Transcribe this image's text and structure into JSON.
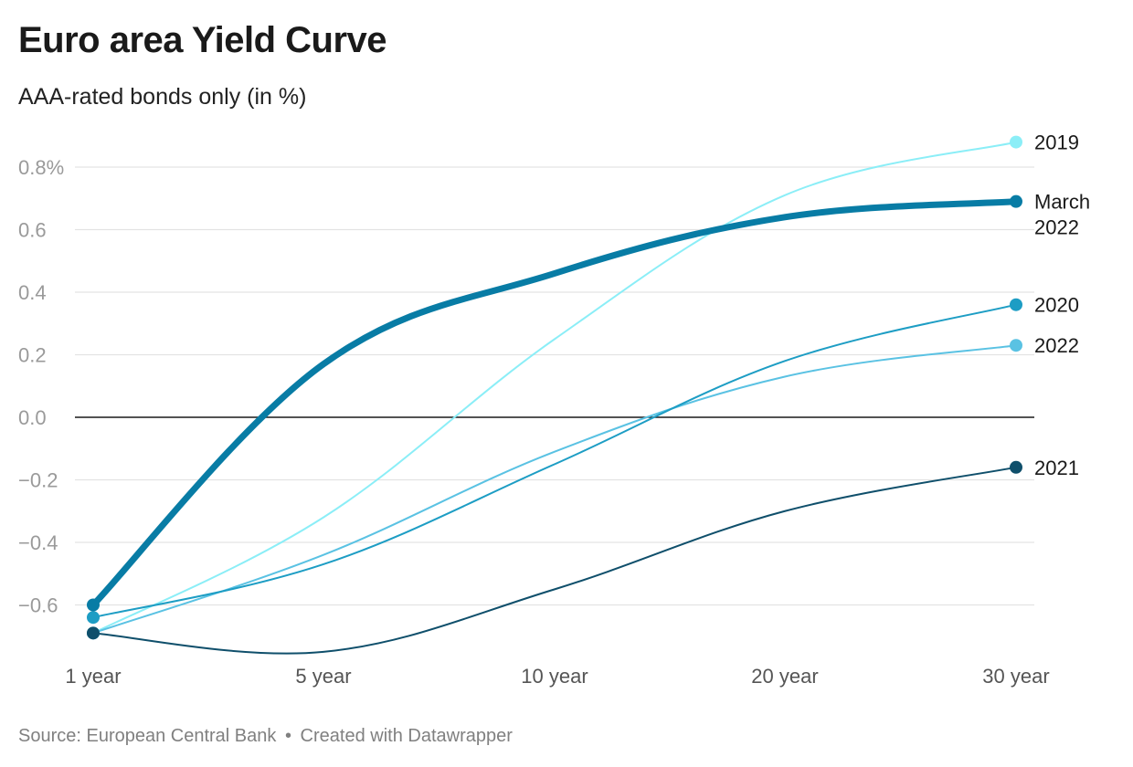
{
  "title": "Euro area Yield Curve",
  "subtitle": "AAA-rated bonds only (in %)",
  "source": {
    "text": "Source: European Central Bank",
    "separator": "•",
    "credit": "Created with Datawrapper"
  },
  "chart_data": {
    "type": "line",
    "title": "Euro area Yield Curve",
    "subtitle": "AAA-rated bonds only (in %)",
    "xlabel": "",
    "ylabel": "",
    "categories": [
      "1 year",
      "5 year",
      "10 year",
      "20 year",
      "30 year"
    ],
    "y_ticks": [
      {
        "value": 0.8,
        "label": "0.8%"
      },
      {
        "value": 0.6,
        "label": "0.6"
      },
      {
        "value": 0.4,
        "label": "0.4"
      },
      {
        "value": 0.2,
        "label": "0.2"
      },
      {
        "value": 0.0,
        "label": "0.0"
      },
      {
        "value": -0.2,
        "label": "−0.2"
      },
      {
        "value": -0.4,
        "label": "−0.4"
      },
      {
        "value": -0.6,
        "label": "−0.6"
      }
    ],
    "ylim": [
      -0.8,
      0.95
    ],
    "grid": true,
    "legend": "direct labels at line ends (right)",
    "series": [
      {
        "name": "2019",
        "label_lines": [
          "2019"
        ],
        "color": "#8beef7",
        "width": 2,
        "values": [
          -0.69,
          -0.32,
          0.25,
          0.71,
          0.88
        ]
      },
      {
        "name": "2022",
        "label_lines": [
          "2022"
        ],
        "color": "#5ac2e3",
        "width": 2,
        "values": [
          -0.69,
          -0.44,
          -0.11,
          0.13,
          0.23
        ]
      },
      {
        "name": "2020",
        "label_lines": [
          "2020"
        ],
        "color": "#1d9dc4",
        "width": 2,
        "values": [
          -0.64,
          -0.47,
          -0.15,
          0.18,
          0.36
        ]
      },
      {
        "name": "2021",
        "label_lines": [
          "2021"
        ],
        "color": "#0f4f6b",
        "width": 2,
        "values": [
          -0.69,
          -0.75,
          -0.55,
          -0.3,
          -0.16
        ]
      },
      {
        "name": "March 2022",
        "label_lines": [
          "March",
          "2022"
        ],
        "color": "#087ca5",
        "width": 7,
        "values": [
          -0.6,
          0.17,
          0.46,
          0.64,
          0.69
        ]
      }
    ]
  }
}
